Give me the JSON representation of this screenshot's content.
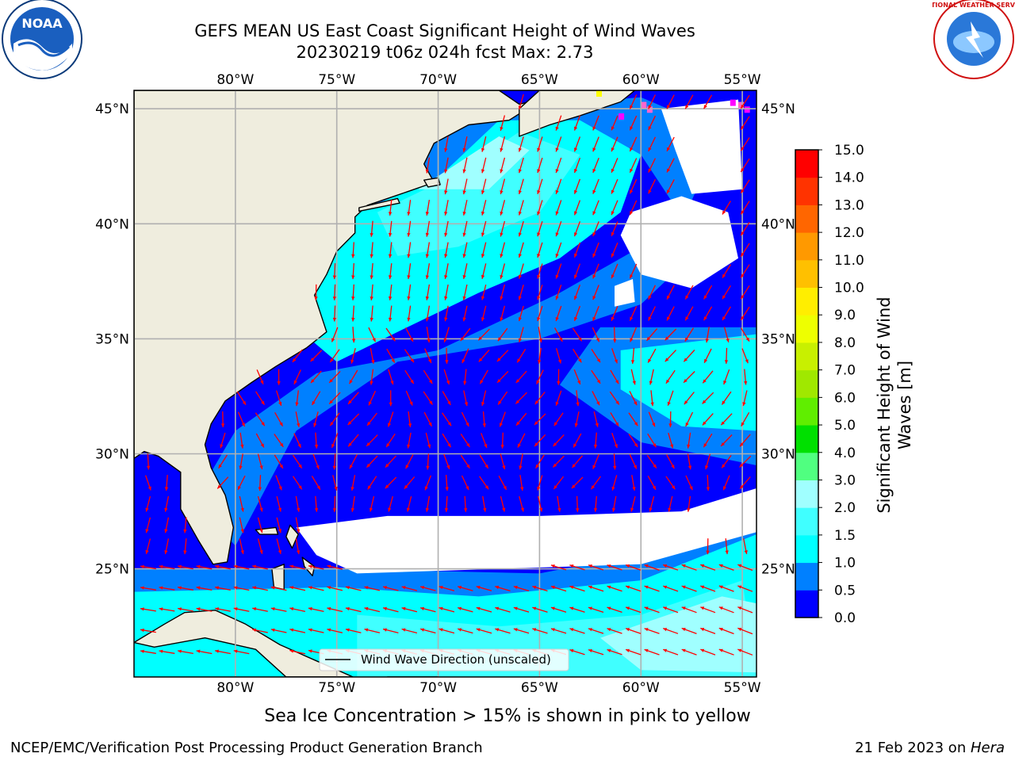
{
  "title": {
    "line1": "GEFS MEAN US East Coast Significant Height of Wind Waves",
    "line2": "20230219 t06z 024h fcst   Max: 2.73"
  },
  "subtitle": "Sea Ice Concentration > 15% is shown in pink to yellow",
  "footer": {
    "left": "NCEP/EMC/Verification Post Processing Product Generation Branch",
    "right_date": "21 Feb 2023 on ",
    "right_machine": "Hera"
  },
  "legend": {
    "label": "Wind Wave Direction (unscaled)"
  },
  "logos": {
    "left": "NOAA",
    "right": "NATIONAL WEATHER SERVICE"
  },
  "colorbar": {
    "label": "Significant Height of Wind Waves [m]",
    "ticks": [
      "0.0",
      "0.5",
      "1.0",
      "1.5",
      "2.0",
      "3.0",
      "4.0",
      "5.0",
      "6.0",
      "7.0",
      "8.0",
      "9.0",
      "10.0",
      "11.0",
      "12.0",
      "13.0",
      "14.0",
      "15.0"
    ],
    "colors": [
      "#0000ff",
      "#0080ff",
      "#00ffff",
      "#40ffff",
      "#a0ffff",
      "#50ff80",
      "#00e000",
      "#60ee00",
      "#a0e800",
      "#c8f000",
      "#eeff00",
      "#ffee00",
      "#ffc000",
      "#ff9900",
      "#ff6600",
      "#ff3300",
      "#ff0000"
    ]
  },
  "map": {
    "lon_ticks": [
      "80°W",
      "75°W",
      "70°W",
      "65°W",
      "60°W",
      "55°W"
    ],
    "lat_ticks": [
      "45°N",
      "40°N",
      "35°N",
      "30°N",
      "25°N"
    ],
    "extent": {
      "lon_min": -85,
      "lon_max": -54.3,
      "lat_min": 20.3,
      "lat_max": 45.8
    },
    "land_color": "#efedde",
    "arrow_color": "#ff0000",
    "grid_color": "#b0b0b0",
    "sea_ice_colors": [
      "#ff66cc",
      "#ff00ff",
      "#ffff00"
    ]
  }
}
